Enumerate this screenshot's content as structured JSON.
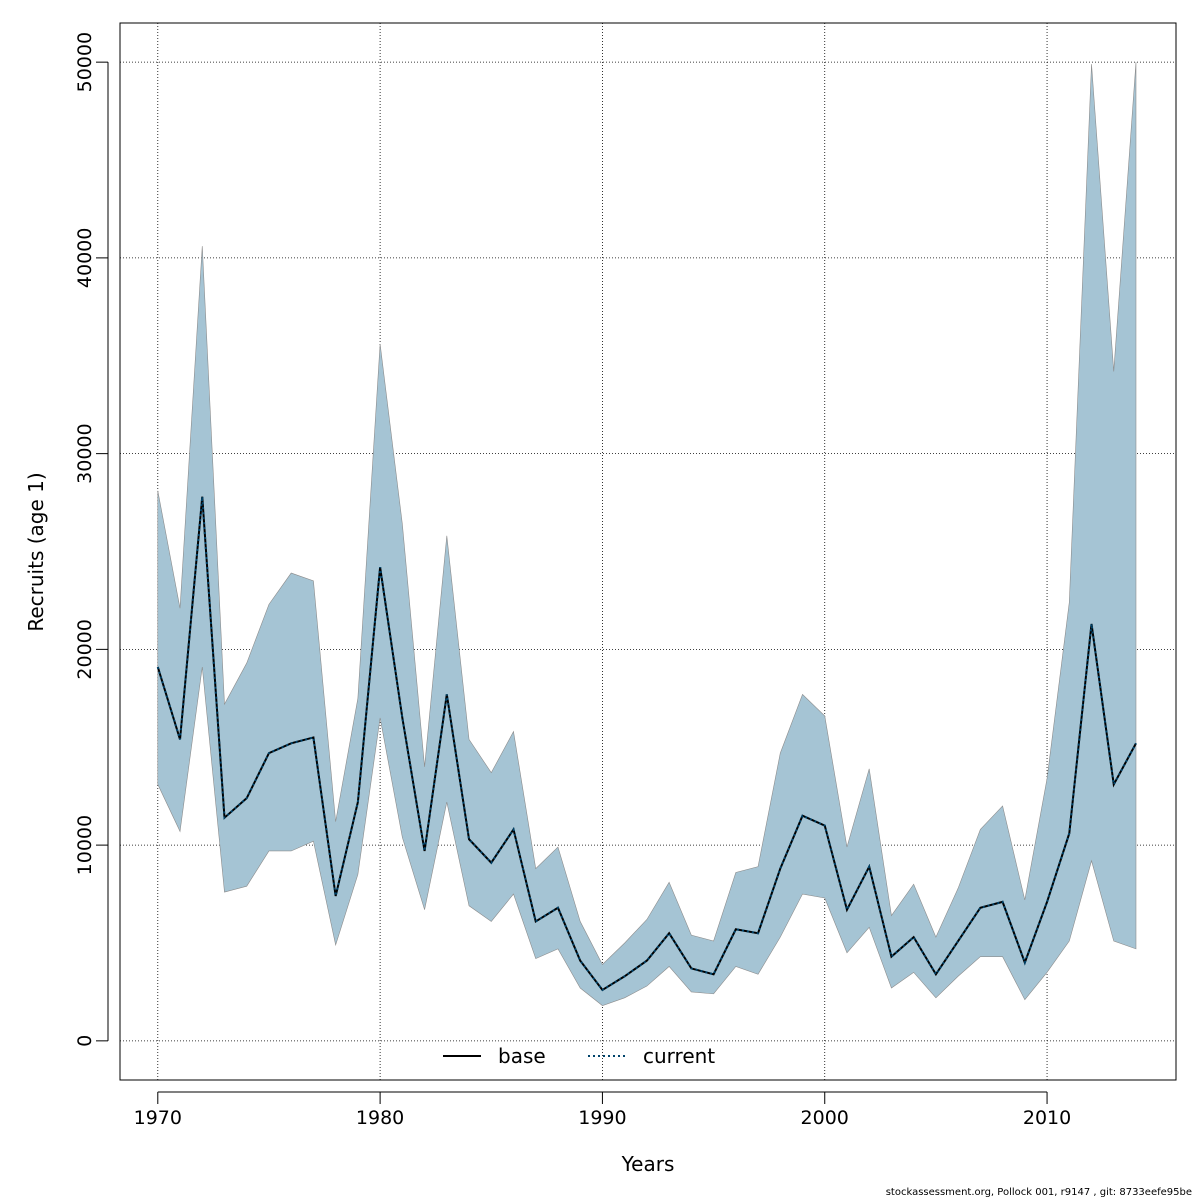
{
  "footer_text": "stockassessment.org, Pollock  001, r9147 , git: 8733eefe95be",
  "chart_data": {
    "type": "line",
    "title": "",
    "xlabel": "Years",
    "ylabel": "Recruits (age 1)",
    "xlim": [
      1968.3,
      2015.8
    ],
    "ylim": [
      -2000,
      52000
    ],
    "x_ticks": [
      1970,
      1980,
      1990,
      2000,
      2010
    ],
    "y_ticks": [
      0,
      10000,
      20000,
      30000,
      40000,
      50000
    ],
    "grid": true,
    "legend_position": "bottom-center",
    "colors": {
      "band": "#a5c4d4",
      "band_edge": "#8c8c8c",
      "base": "#000000",
      "current": "#00446b",
      "grid": "#000000"
    },
    "x": [
      1970,
      1971,
      1972,
      1973,
      1974,
      1975,
      1976,
      1977,
      1978,
      1979,
      1980,
      1981,
      1982,
      1983,
      1984,
      1985,
      1986,
      1987,
      1988,
      1989,
      1990,
      1991,
      1992,
      1993,
      1994,
      1995,
      1996,
      1997,
      1998,
      1999,
      2000,
      2001,
      2002,
      2003,
      2004,
      2005,
      2006,
      2007,
      2008,
      2009,
      2010,
      2011,
      2012,
      2013,
      2014
    ],
    "series": [
      {
        "name": "base",
        "style": "solid",
        "values": [
          19100,
          15400,
          27800,
          11400,
          12400,
          14700,
          15200,
          15500,
          7400,
          12200,
          24200,
          16500,
          9700,
          17700,
          10300,
          9100,
          10800,
          6100,
          6800,
          4100,
          2600,
          3300,
          4100,
          5500,
          3700,
          3400,
          5700,
          5500,
          8800,
          11500,
          11000,
          6700,
          8900,
          4300,
          5300,
          3400,
          5100,
          6800,
          7100,
          4000,
          7100,
          10600,
          21300,
          13100,
          15200
        ]
      },
      {
        "name": "current",
        "style": "dotted",
        "values": [
          19100,
          15400,
          27800,
          11400,
          12400,
          14700,
          15200,
          15500,
          7400,
          12200,
          24200,
          16500,
          9700,
          17700,
          10300,
          9100,
          10800,
          6100,
          6800,
          4100,
          2600,
          3300,
          4100,
          5500,
          3700,
          3400,
          5700,
          5500,
          8800,
          11500,
          11000,
          6700,
          8900,
          4300,
          5300,
          3400,
          5100,
          6800,
          7100,
          4000,
          7100,
          10600,
          21300,
          13100,
          15200
        ]
      }
    ],
    "band": {
      "upper": [
        28100,
        22100,
        40600,
        17200,
        19300,
        22300,
        23900,
        23500,
        11200,
        17500,
        35600,
        26400,
        14000,
        25800,
        15400,
        13700,
        15800,
        8800,
        9900,
        6100,
        3900,
        5000,
        6200,
        8100,
        5400,
        5100,
        8600,
        8900,
        14700,
        17700,
        16600,
        9900,
        13900,
        6400,
        8000,
        5300,
        7800,
        10800,
        12000,
        7200,
        13400,
        22400,
        49900,
        34200,
        50000
      ],
      "lower": [
        13100,
        10700,
        19100,
        7600,
        7900,
        9700,
        9700,
        10200,
        4900,
        8500,
        16500,
        10400,
        6700,
        12200,
        6900,
        6100,
        7500,
        4200,
        4700,
        2700,
        1800,
        2200,
        2800,
        3800,
        2500,
        2400,
        3800,
        3400,
        5300,
        7500,
        7300,
        4500,
        5800,
        2700,
        3500,
        2200,
        3300,
        4300,
        4300,
        2100,
        3500,
        5100,
        9200,
        5100,
        4700
      ]
    }
  },
  "legend": {
    "items": [
      {
        "label": "base"
      },
      {
        "label": "current"
      }
    ]
  }
}
